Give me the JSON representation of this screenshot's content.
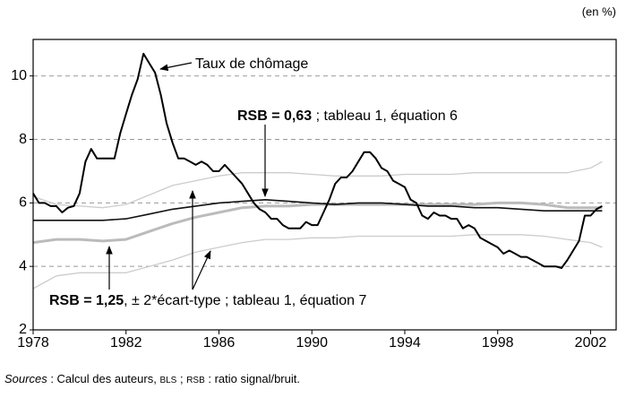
{
  "chart_data": {
    "type": "line",
    "unit": "(en %)",
    "annotations": [
      "Taux de chômage",
      [
        "RSB = 0,63",
        " ; tableau 1, équation 6"
      ],
      [
        "RSB = 1,25",
        ", ± 2*écart-type ; tableau 1, équation 7"
      ]
    ],
    "source": [
      "Sources",
      " : Calcul des auteurs, ",
      "BLS",
      " ; ",
      "RSB",
      " : ratio signal/bruit."
    ],
    "xlim": [
      1978,
      2003.1
    ],
    "xticks": [
      1978,
      1982,
      1986,
      1990,
      1994,
      1998,
      2002
    ],
    "ylim": [
      2,
      11.15
    ],
    "yticks": [
      2,
      4,
      6,
      8,
      10
    ],
    "grid": true,
    "series": [
      {
        "color": "#cccccc",
        "x": [
          1978,
          1979,
          1980,
          1981,
          1982,
          1983,
          1984,
          1985,
          1986,
          1987,
          1988,
          1989,
          1990,
          1991,
          1992,
          1993,
          1994,
          1995,
          1996,
          1997,
          1998,
          1999,
          2000,
          2001,
          2002,
          2002.5
        ],
        "values": [
          6.2,
          5.95,
          5.9,
          5.85,
          5.95,
          6.25,
          6.55,
          6.7,
          6.85,
          6.95,
          6.95,
          6.95,
          6.9,
          6.85,
          6.85,
          6.85,
          6.9,
          6.9,
          6.9,
          6.95,
          6.95,
          6.95,
          6.95,
          6.95,
          7.1,
          7.3
        ]
      },
      {
        "color": "#cccccc",
        "x": [
          1978,
          1979,
          1980,
          1981,
          1982,
          1983,
          1984,
          1985,
          1986,
          1987,
          1988,
          1989,
          1990,
          1991,
          1992,
          1993,
          1994,
          1995,
          1996,
          1997,
          1998,
          1999,
          2000,
          2001,
          2002,
          2002.5
        ],
        "values": [
          3.3,
          3.7,
          3.8,
          3.8,
          3.8,
          4.0,
          4.2,
          4.45,
          4.6,
          4.75,
          4.85,
          4.85,
          4.9,
          4.9,
          4.95,
          4.95,
          4.95,
          4.95,
          4.95,
          5.0,
          5.0,
          5.0,
          4.95,
          4.85,
          4.75,
          4.6
        ]
      },
      {
        "color": "#bbbbbb",
        "x": [
          1978,
          1979,
          1980,
          1981,
          1982,
          1983,
          1984,
          1985,
          1986,
          1987,
          1988,
          1989,
          1990,
          1991,
          1992,
          1993,
          1994,
          1995,
          1996,
          1997,
          1998,
          1999,
          2000,
          2001,
          2002,
          2002.5
        ],
        "values": [
          4.75,
          4.85,
          4.85,
          4.8,
          4.85,
          5.1,
          5.35,
          5.55,
          5.7,
          5.85,
          5.9,
          5.9,
          5.95,
          5.95,
          5.95,
          5.95,
          5.95,
          5.95,
          5.95,
          5.95,
          6.0,
          6.0,
          5.95,
          5.85,
          5.85,
          5.85
        ]
      },
      {
        "color": "#111111",
        "x": [
          1978,
          1979,
          1980,
          1981,
          1982,
          1983,
          1984,
          1985,
          1986,
          1987,
          1988,
          1989,
          1990,
          1991,
          1992,
          1993,
          1994,
          1995,
          1996,
          1997,
          1998,
          1999,
          2000,
          2001,
          2002,
          2002.5
        ],
        "values": [
          5.45,
          5.45,
          5.45,
          5.45,
          5.5,
          5.65,
          5.8,
          5.9,
          6.0,
          6.05,
          6.1,
          6.05,
          6.0,
          5.95,
          6.0,
          6.0,
          5.95,
          5.9,
          5.9,
          5.85,
          5.85,
          5.8,
          5.75,
          5.75,
          5.75,
          5.75
        ]
      },
      {
        "color": "#000000",
        "x": [
          1978,
          1978.25,
          1978.5,
          1978.75,
          1979,
          1979.25,
          1979.5,
          1979.75,
          1980,
          1980.25,
          1980.5,
          1980.75,
          1981,
          1981.25,
          1981.5,
          1981.75,
          1982,
          1982.25,
          1982.5,
          1982.75,
          1983,
          1983.25,
          1983.5,
          1983.75,
          1984,
          1984.25,
          1984.5,
          1984.75,
          1985,
          1985.25,
          1985.5,
          1985.75,
          1986,
          1986.25,
          1986.5,
          1986.75,
          1987,
          1987.25,
          1987.5,
          1987.75,
          1988,
          1988.25,
          1988.5,
          1988.75,
          1989,
          1989.25,
          1989.5,
          1989.75,
          1990,
          1990.25,
          1990.5,
          1990.75,
          1991,
          1991.25,
          1991.5,
          1991.75,
          1992,
          1992.25,
          1992.5,
          1992.75,
          1993,
          1993.25,
          1993.5,
          1993.75,
          1994,
          1994.25,
          1994.5,
          1994.75,
          1995,
          1995.25,
          1995.5,
          1995.75,
          1996,
          1996.25,
          1996.5,
          1996.75,
          1997,
          1997.25,
          1997.5,
          1997.75,
          1998,
          1998.25,
          1998.5,
          1998.75,
          1999,
          1999.25,
          1999.5,
          1999.75,
          2000,
          2000.25,
          2000.5,
          2000.75,
          2001,
          2001.25,
          2001.5,
          2001.75,
          2002,
          2002.25,
          2002.5
        ],
        "values": [
          6.3,
          6.0,
          6.0,
          5.9,
          5.9,
          5.7,
          5.85,
          5.9,
          6.3,
          7.3,
          7.7,
          7.4,
          7.4,
          7.4,
          7.4,
          8.2,
          8.8,
          9.4,
          9.9,
          10.7,
          10.4,
          10.1,
          9.4,
          8.5,
          7.9,
          7.4,
          7.4,
          7.3,
          7.2,
          7.3,
          7.2,
          7.0,
          7.0,
          7.2,
          7.0,
          6.8,
          6.6,
          6.3,
          6.0,
          5.8,
          5.7,
          5.5,
          5.5,
          5.3,
          5.2,
          5.2,
          5.2,
          5.4,
          5.3,
          5.3,
          5.7,
          6.1,
          6.6,
          6.8,
          6.8,
          7.0,
          7.3,
          7.6,
          7.6,
          7.4,
          7.1,
          7.0,
          6.7,
          6.6,
          6.5,
          6.1,
          6.0,
          5.6,
          5.5,
          5.7,
          5.6,
          5.6,
          5.5,
          5.5,
          5.2,
          5.3,
          5.2,
          4.9,
          4.8,
          4.7,
          4.6,
          4.4,
          4.5,
          4.4,
          4.3,
          4.3,
          4.2,
          4.1,
          4.0,
          4.0,
          4.0,
          3.95,
          4.2,
          4.5,
          4.8,
          5.6,
          5.6,
          5.8,
          5.9
        ]
      }
    ]
  }
}
